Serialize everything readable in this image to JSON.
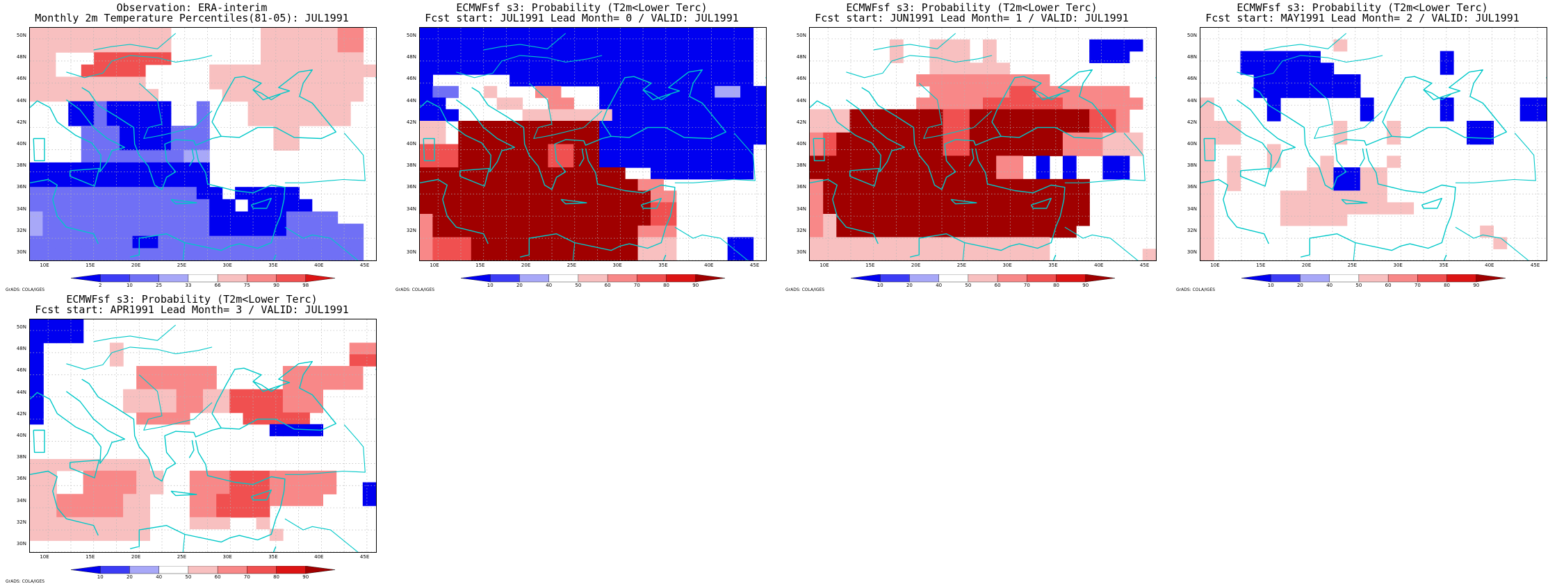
{
  "colors": {
    "cold_scale": [
      "#0000f0",
      "#3c3cf5",
      "#7070f5",
      "#a8a8f8"
    ],
    "warm_scale": [
      "#f8c0c0",
      "#f88888",
      "#f05050",
      "#dc1414",
      "#a00000"
    ],
    "coast": "#00c8c8",
    "grid": "#b4b4b4"
  },
  "credit": "GrADS: COLA/IGES",
  "lat_ticks": [
    "50N",
    "48N",
    "46N",
    "44N",
    "42N",
    "40N",
    "38N",
    "36N",
    "34N",
    "32N",
    "30N"
  ],
  "lon_ticks": [
    "10E",
    "15E",
    "20E",
    "25E",
    "30E",
    "35E",
    "40E",
    "45E"
  ],
  "panels": [
    {
      "title1": "Observation: ERA-interim",
      "title2": "Monthly 2m Temperature Percentiles(81-05): JUL1991",
      "colorbar": {
        "labels": [
          "2",
          "10",
          "25",
          "33",
          "66",
          "75",
          "90",
          "98"
        ],
        "colors": [
          "#0000f0",
          "#3c3cf5",
          "#7070f5",
          "#a8a8f8",
          "#ffffff",
          "#f8c0c0",
          "#f88888",
          "#f05050",
          "#dc1414"
        ]
      }
    },
    {
      "title1": "ECMWFsf s3: Probability (T2m<Lower Terc)",
      "title2": "Fcst start: JUL1991  Lead Month= 0 / VALID: JUL1991",
      "colorbar": {
        "labels": [
          "10",
          "20",
          "40",
          "50",
          "60",
          "70",
          "80",
          "90"
        ],
        "colors": [
          "#0000f0",
          "#3c3cf5",
          "#a8a8f8",
          "#ffffff",
          "#f8c0c0",
          "#f88888",
          "#f05050",
          "#dc1414",
          "#a00000"
        ]
      }
    },
    {
      "title1": "ECMWFsf s3: Probability (T2m<Lower Terc)",
      "title2": "Fcst start: JUN1991  Lead Month= 1 / VALID: JUL1991",
      "colorbar": {
        "labels": [
          "10",
          "20",
          "40",
          "50",
          "60",
          "70",
          "80",
          "90"
        ],
        "colors": [
          "#0000f0",
          "#3c3cf5",
          "#a8a8f8",
          "#ffffff",
          "#f8c0c0",
          "#f88888",
          "#f05050",
          "#dc1414",
          "#a00000"
        ]
      }
    },
    {
      "title1": "ECMWFsf s3: Probability (T2m<Lower Terc)",
      "title2": "Fcst start: MAY1991  Lead Month= 2 / VALID: JUL1991",
      "colorbar": {
        "labels": [
          "10",
          "20",
          "40",
          "50",
          "60",
          "70",
          "80",
          "90"
        ],
        "colors": [
          "#0000f0",
          "#3c3cf5",
          "#a8a8f8",
          "#ffffff",
          "#f8c0c0",
          "#f88888",
          "#f05050",
          "#dc1414",
          "#a00000"
        ]
      }
    },
    {
      "title1": "ECMWFsf s3: Probability (T2m<Lower Terc)",
      "title2": "Fcst start: APR1991  Lead Month= 3 / VALID: JUL1991",
      "colorbar": {
        "labels": [
          "10",
          "20",
          "40",
          "50",
          "60",
          "70",
          "80",
          "90"
        ],
        "colors": [
          "#0000f0",
          "#3c3cf5",
          "#a8a8f8",
          "#ffffff",
          "#f8c0c0",
          "#f88888",
          "#f05050",
          "#dc1414",
          "#a00000"
        ]
      }
    }
  ],
  "grid_fields": [
    [
      "ooooooooooo.......oooooopp",
      "ooooooooooo.......oooooopp",
      "oo...rrrrrr.......oooooooo",
      "oo..rrrrr.....ooooooooooooo",
      "ooooooooo.....oooooooooooo",
      "oooooooooo.....ooooooooooo",
      "...aabaaaaa..b...oooooooo.",
      "...aabaaaaa..b...oooooooo.",
      "....bbbaaaabbb.....oo.....",
      "....bbbaaaabbb.....oo.....",
      "....bbbbbbbbcc............",
      "aaaaaaaaaaaaaa............",
      "aaaaaaaaaaaaaa............",
      "bbbbbbbbbbbbbaa.aaaaa.....",
      "bbbbbbbbbbbbbbaa.aaaaa....",
      "cbbbbbbbbbbbbbaaaaaabbbb..",
      "cbbbbbbbbbbbbbaaaaaabbbbbb",
      "bbbbbbbbaabbbbbbbbbbbbbbbb",
      "bbbbbbbbbbbbbbbbbbbbbbbbbb"
    ],
    [
      "aaaaaaaaaaaaaaaaaaaaaaaaaa",
      "aaaaaaaaaaaaaaaaaaaaaaaaaa",
      "aaaaaaaaaaaaaaaaaaaaaaaaaa",
      "aaaaaaaaaaaaaaaaaaaaaaaaaa",
      "a......aaaaaaaaaaaaaaaaaaa",
      "abb..o...pp...aaaaaaaaaccaa",
      "aa....oo..pp..aaaaaaaaaaaaa",
      "aaa.....oooooooaaaaaaaaaaaa",
      "oo.RRRRRRRRRRRaaaaaaaaaaaaa",
      "oo.RRRRRRRRRRRaaaaaaaaaaaaa",
      "rrrRRRRRRRrrRRaaaaaaaaaaaa",
      "rrrRRRRRRRrrRRaaaaaaaaaaaa",
      "RRRRRRRRRRRRRRRR..aaaaaaaa",
      "RRRRRRRRRRRRRRRRRpp.......",
      "RRRRRRRRRRRRRRRRRRpp......",
      "RRRRRRRRRRRRRRRRRRrr......",
      "pRRRRRRRRRRRRRRRRRrr......",
      "pRRRRRRRRRRRRRRRRppp......",
      "prrrRRRRRRRRRRRRRooo....aa",
      "prrrRRRRRRRRRRRRRooo....aa"
    ],
    [
      "..........................",
      "......o..ooo.o.......aaaa.",
      "......o..ooo.o.......aaa..",
      ".........oooooo...........",
      "........pppppppppp........",
      ".........pppppprrppppppp..",
      "........ppppprrrrrrpppppp.",
      "oooRRRRRRRrrRRRRRRRRRrrp..",
      "oooRRRRRRRrrRRRRRRRRRrrp..",
      "prRRRRRRRRrrRRRRRRRpppooo.",
      "prRRRRRRRRrrRRRRRRRpppooo.",
      "RRRRRRRRRRRRRRpp.a.a..aa..",
      "RRRRRRRRRRRRRRpp.a.a..aa..",
      "pRRRRRRRRRRRRRRRRRRRR.....",
      "pRRRRRRRRRRRRRRRRRRRR.....",
      "pRRRRRRRRRRRRRRRRRRRR.....",
      "poRRRRRRRRRRRRRRRRRRR.....",
      "poRRRRRRRRRRRRRRRRRR......",
      "oooooooooooooooooo........",
      "oooooooooooooooooo.......o"
    ],
    [
      "..........................",
      "..........o...............",
      "...aaaaaa.........a.......",
      "...aaaaaaa........a.......",
      "....aaaaaaaa..............",
      "....aaaaaaaa..............",
      "o....a......a.....a.....aa",
      "o....a......a.....a.....aa",
      "ooo.......o...o.....aa....",
      "ooo.......o...o.....aa....",
      "o....o....................",
      "o.o..o...o....o...........",
      "o.o.....ooaaoo............",
      "o.o.....ooaaoo............",
      "o.....oooooooo............",
      "o.....oooooooooo..........",
      "o.....ooooo...............",
      "o....................o....",
      "o.....................o...",
      "o........................."
    ],
    [
      "aaaa.....................",
      "aaaa.....................",
      "a.....o.................pp",
      "a.....o.................rr",
      "a.......pppppp.....pppppp.",
      "a.......pppppp.....pppppp.",
      "a......ooooppoorrrrppp....",
      "a......ooooppoorrrrppp....",
      "a.......pppp....rrrrr.....",
      "..................aaaa....",
      "..........................",
      "..........................",
      "ooooooooo.................",
      "oo..ppppoo..ppprrrppppp...",
      "oo..ppppoo..ppprrrppppp..a",
      "oopppppoo...pprrrrpppp...a",
      "oopppppoo...pprrrr........",
      "ooooooooo...ooo..o........",
      "ooooooooo.........o.......",
      ".........................."
    ]
  ]
}
